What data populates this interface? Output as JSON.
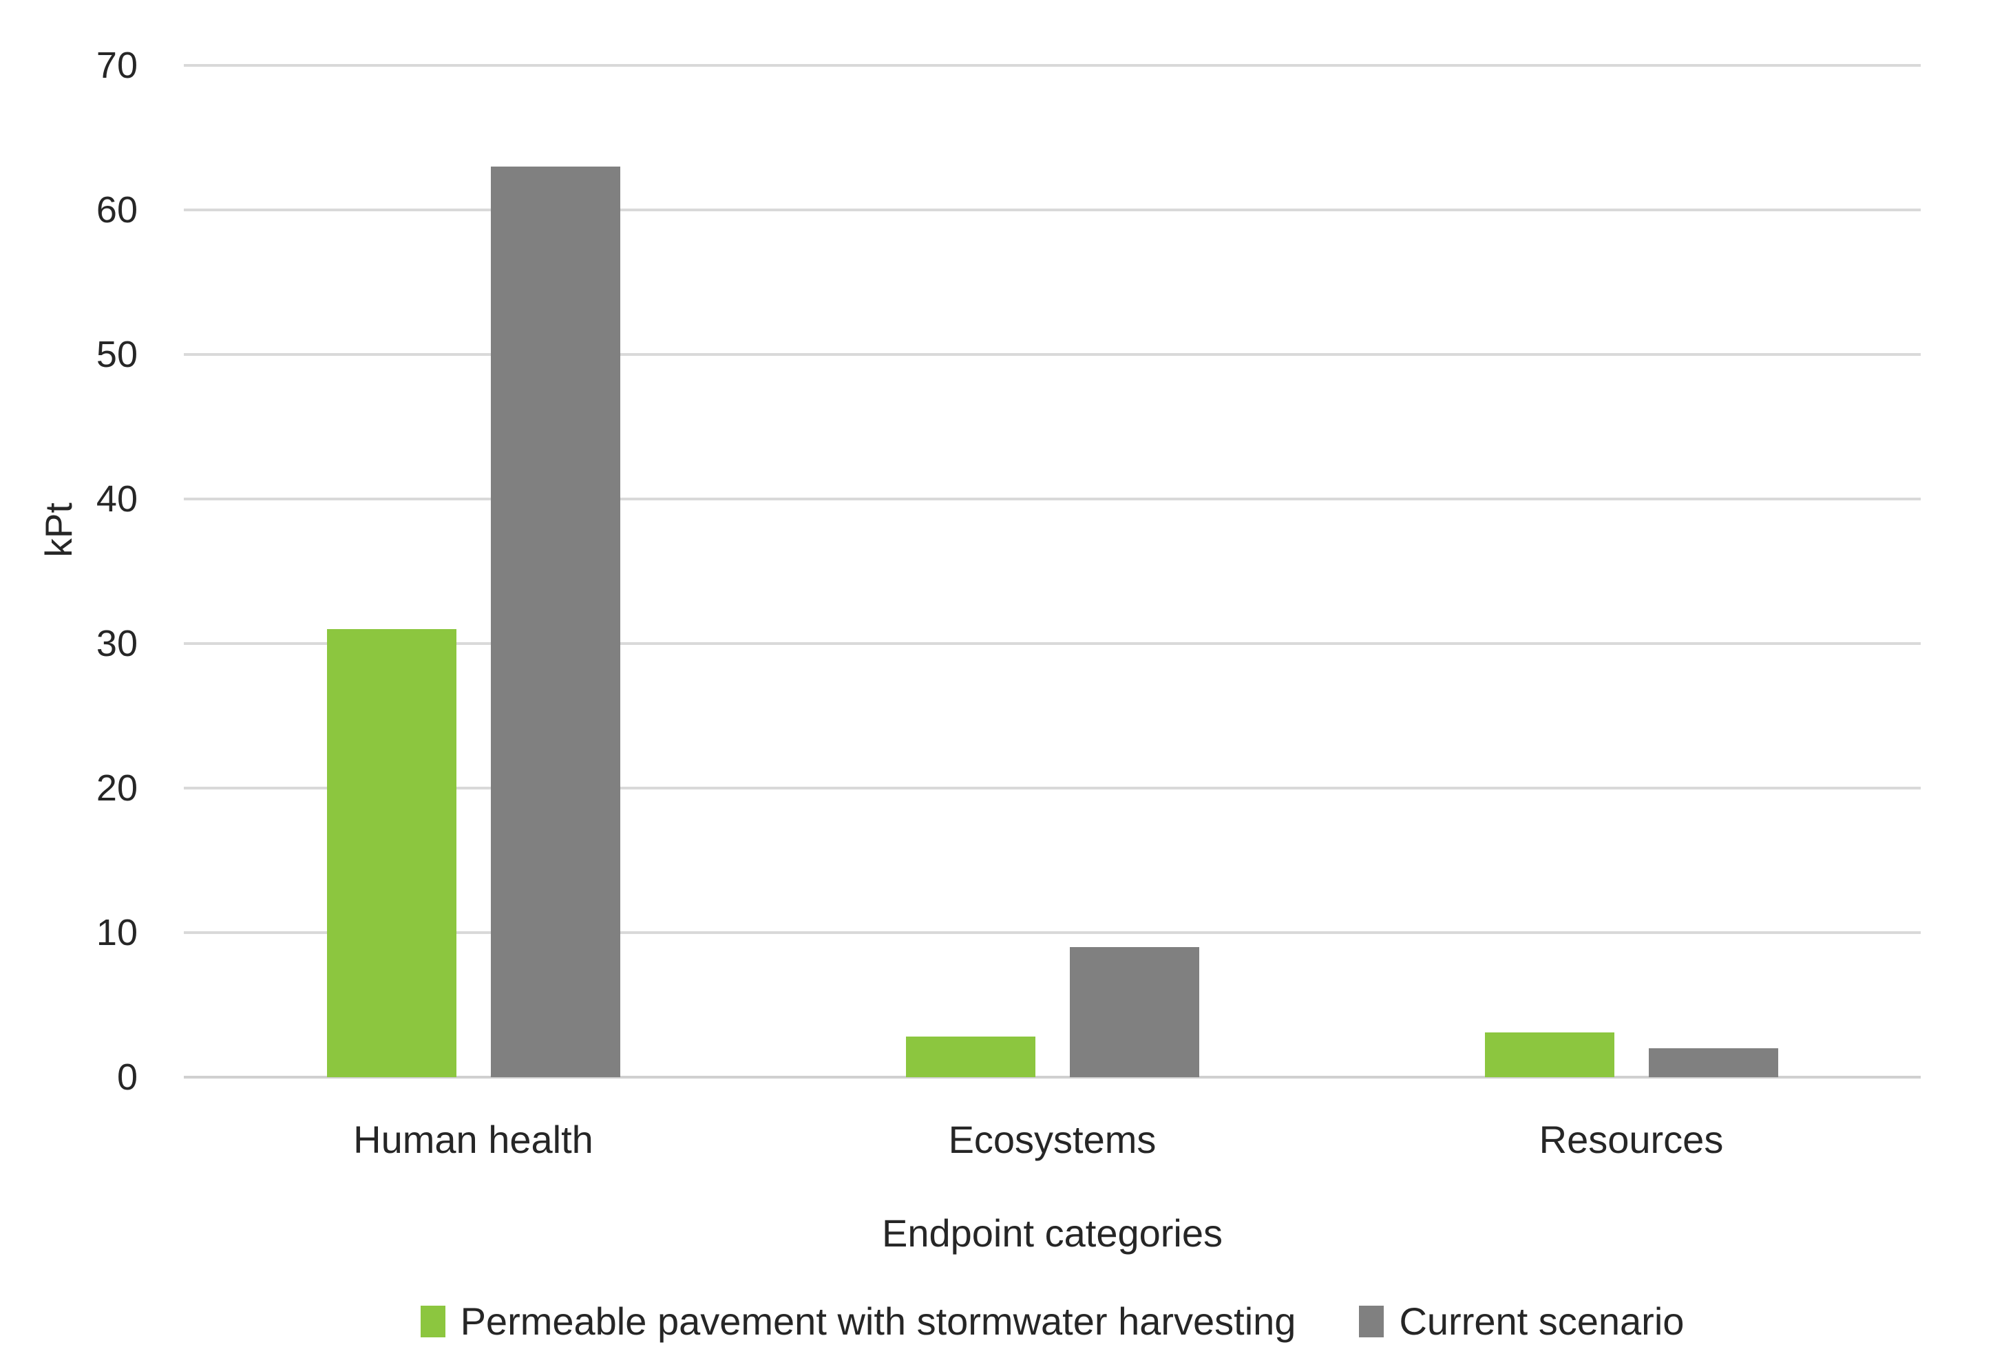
{
  "chart_data": {
    "type": "bar",
    "title": "",
    "categories": [
      "Human health",
      "Ecosystems",
      "Resources"
    ],
    "series": [
      {
        "name": "Permeable pavement with stormwater harvesting",
        "color": "#8cc63f",
        "values": [
          31,
          2.8,
          3.1
        ]
      },
      {
        "name": "Current scenario",
        "color": "#808080",
        "values": [
          63,
          9,
          2
        ]
      }
    ],
    "xlabel": "Endpoint categories",
    "ylabel": "kPt",
    "ylim": [
      0,
      70
    ],
    "yticks": [
      0,
      10,
      20,
      30,
      40,
      50,
      60,
      70
    ],
    "grid": true,
    "legend_position": "bottom",
    "colors": {
      "gridline": "#d9d9d9",
      "axis_line": "#d0d0d0",
      "text": "#262626",
      "background": "#ffffff"
    }
  }
}
